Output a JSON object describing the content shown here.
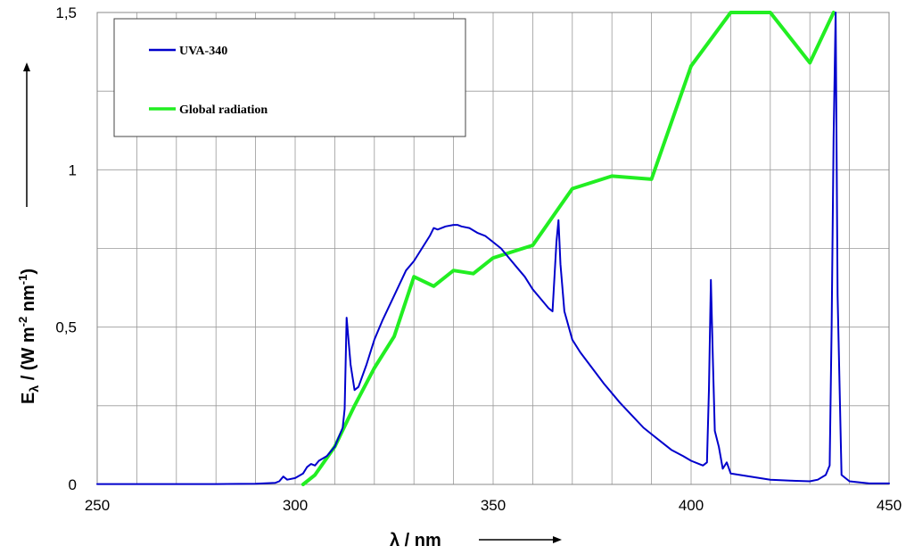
{
  "chart_data": {
    "type": "line",
    "xlabel": "λ / nm",
    "ylabel": "Eλ / (W m-2 nm-1)",
    "ylabel_parts": {
      "main": "E",
      "sub": "λ",
      "mid": " / (W m",
      "exp1": "-2",
      "mid2": " nm",
      "exp2": "-1",
      "end": ")"
    },
    "xlim": [
      250,
      450
    ],
    "ylim": [
      0,
      1.5
    ],
    "x_ticks": [
      250,
      300,
      350,
      400,
      450
    ],
    "x_tick_labels": [
      "250",
      "300",
      "350",
      "400",
      "450"
    ],
    "y_ticks": [
      0,
      0.5,
      1,
      1.5
    ],
    "y_tick_labels": [
      "0",
      "0,5",
      "1",
      "1,5"
    ],
    "x_grid_step": 10,
    "y_grid_step": 0.25,
    "grid": true,
    "legend_position": "top-left",
    "colors": {
      "UVA-340": "#0000cc",
      "Global radiation": "#22ee22"
    },
    "series": [
      {
        "name": "UVA-340",
        "color": "#0000cc",
        "x": [
          250,
          280,
          290,
          295,
          296,
          297,
          298,
          300,
          302,
          303,
          304,
          305,
          306,
          308,
          310,
          312,
          312.5,
          313,
          314,
          315,
          316,
          318,
          320,
          322,
          325,
          328,
          330,
          332,
          334,
          335,
          336,
          338,
          340,
          341,
          342,
          344,
          346,
          348,
          350,
          352,
          354,
          356,
          358,
          360,
          362,
          364,
          365,
          366,
          366.5,
          367,
          368,
          370,
          372,
          375,
          378,
          380,
          382,
          385,
          388,
          390,
          393,
          395,
          398,
          400,
          402,
          403,
          404,
          404.5,
          405,
          405.5,
          406,
          407,
          408,
          409,
          410,
          415,
          420,
          425,
          430,
          432,
          434,
          435,
          435.5,
          436,
          436.5,
          437,
          438,
          440,
          445,
          450
        ],
        "y": [
          0.001,
          0.001,
          0.002,
          0.005,
          0.01,
          0.025,
          0.015,
          0.02,
          0.035,
          0.055,
          0.065,
          0.06,
          0.075,
          0.09,
          0.12,
          0.18,
          0.24,
          0.53,
          0.38,
          0.3,
          0.31,
          0.38,
          0.46,
          0.52,
          0.6,
          0.68,
          0.71,
          0.75,
          0.79,
          0.815,
          0.81,
          0.82,
          0.825,
          0.825,
          0.82,
          0.815,
          0.8,
          0.79,
          0.77,
          0.75,
          0.72,
          0.69,
          0.66,
          0.62,
          0.59,
          0.56,
          0.55,
          0.77,
          0.84,
          0.7,
          0.55,
          0.46,
          0.42,
          0.37,
          0.32,
          0.29,
          0.26,
          0.22,
          0.18,
          0.16,
          0.13,
          0.11,
          0.09,
          0.075,
          0.065,
          0.06,
          0.07,
          0.3,
          0.65,
          0.4,
          0.17,
          0.12,
          0.05,
          0.07,
          0.035,
          0.025,
          0.015,
          0.012,
          0.01,
          0.015,
          0.03,
          0.06,
          0.5,
          1.1,
          1.5,
          0.6,
          0.03,
          0.01,
          0.003,
          0.003
        ]
      },
      {
        "name": "Global radiation",
        "color": "#22ee22",
        "x": [
          302,
          305,
          310,
          315,
          320,
          325,
          330,
          335,
          340,
          345,
          350,
          355,
          360,
          370,
          380,
          390,
          400,
          410,
          420,
          430,
          436
        ],
        "y": [
          0.0,
          0.03,
          0.12,
          0.25,
          0.37,
          0.47,
          0.66,
          0.63,
          0.68,
          0.67,
          0.72,
          0.74,
          0.76,
          0.94,
          0.98,
          0.97,
          1.33,
          1.5,
          1.5,
          1.34,
          1.5
        ]
      }
    ]
  }
}
